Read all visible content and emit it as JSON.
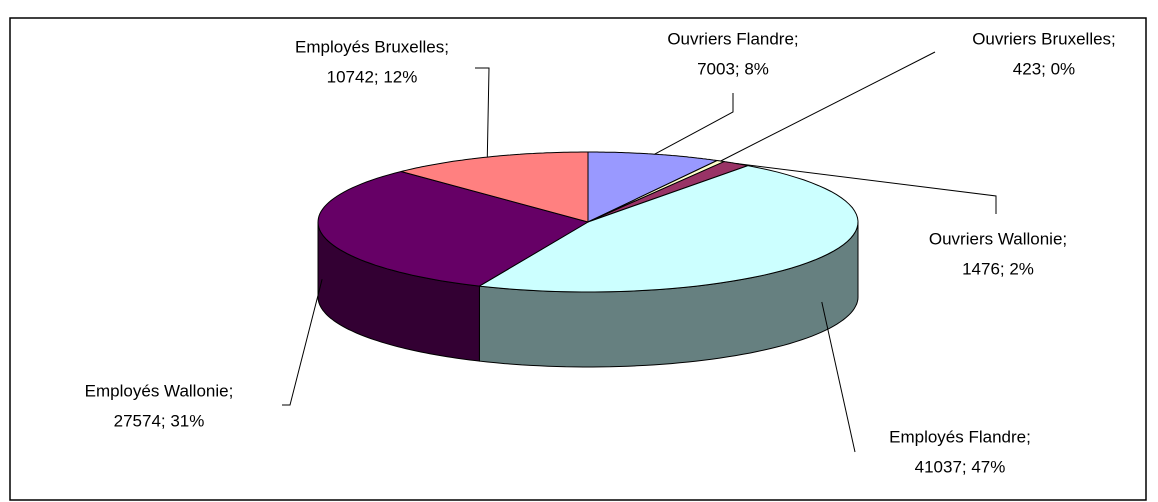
{
  "chart_data": {
    "type": "pie3d",
    "values": [
      7003,
      423,
      1476,
      41037,
      27574,
      10742
    ],
    "value_labels": [
      [
        "Ouvriers Flandre;",
        "7003; 8%"
      ],
      [
        "Ouvriers Bruxelles;",
        "423; 0%"
      ],
      [
        "Ouvriers Wallonie;",
        "1476; 2%"
      ],
      [
        "Employés Flandre;",
        "41037; 47%"
      ],
      [
        "Employés Wallonie;",
        "27574; 31%"
      ],
      [
        "Employés Bruxelles;",
        "10742; 12%"
      ]
    ],
    "colors": [
      "#9999ff",
      "#ffffcc",
      "#993366",
      "#ccffff",
      "#660066",
      "#ff8080"
    ]
  }
}
